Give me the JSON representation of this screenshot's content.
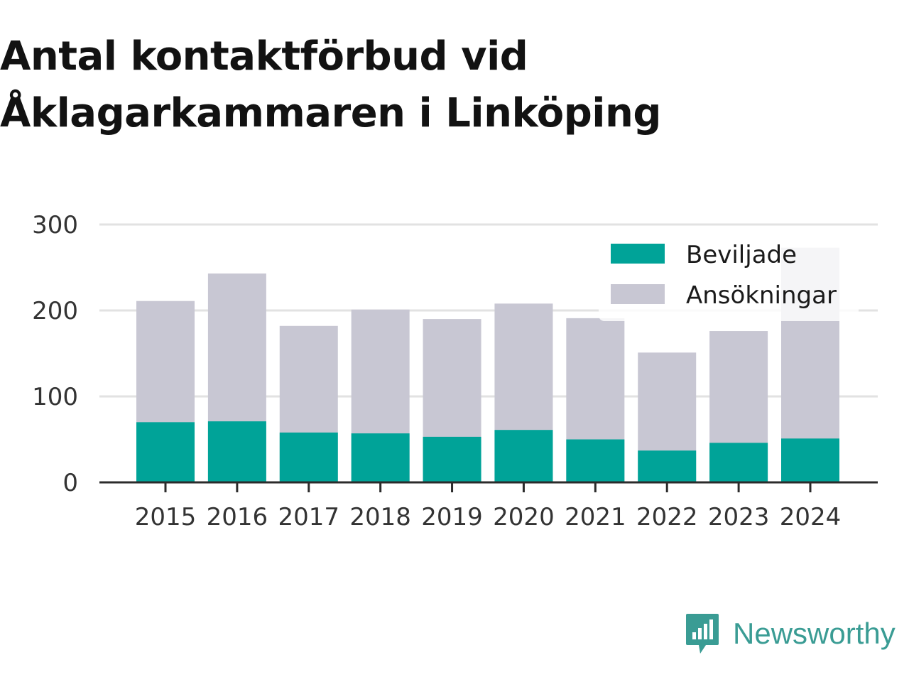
{
  "title_lines": [
    "Antal kontaktförbud vid",
    "Åklagarkammaren i Linköping"
  ],
  "brand": {
    "name": "Newsworthy",
    "icon": "bar-chart-speech-bubble-icon",
    "color": "#3a9c94"
  },
  "chart_data": {
    "type": "bar",
    "stacked": false,
    "overlay": true,
    "categories": [
      "2015",
      "2016",
      "2017",
      "2018",
      "2019",
      "2020",
      "2021",
      "2022",
      "2023",
      "2024"
    ],
    "series": [
      {
        "name": "Ansökningar",
        "color": "#c8c7d3",
        "values": [
          211,
          243,
          182,
          201,
          190,
          208,
          191,
          151,
          176,
          273
        ]
      },
      {
        "name": "Beviljade",
        "color": "#00a398",
        "values": [
          70,
          71,
          58,
          57,
          53,
          61,
          50,
          37,
          46,
          51
        ]
      }
    ],
    "legend_order": [
      "Beviljade",
      "Ansökningar"
    ],
    "legend_position": "top-right",
    "ylim": [
      0,
      300
    ],
    "yticks": [
      0,
      100,
      200,
      300
    ],
    "grid": true,
    "xlabel": "",
    "ylabel": ""
  }
}
